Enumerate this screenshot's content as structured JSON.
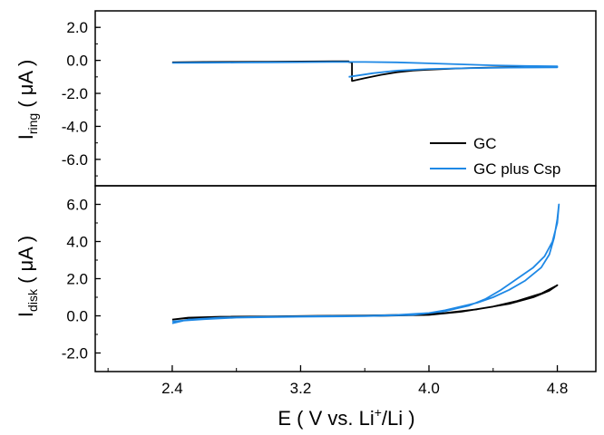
{
  "chart_data": {
    "type": "line",
    "xlabel": {
      "main": "E ( V vs. Li",
      "sup": "+",
      "tail": "/Li )"
    },
    "x_ticks": [
      "2.4",
      "3.2",
      "4.0",
      "4.8"
    ],
    "x_tick_values": [
      2.4,
      3.2,
      4.0,
      4.8
    ],
    "xlim": [
      1.92,
      5.04
    ],
    "legend": {
      "placement": "inside, lower-right of top panel",
      "entries": [
        {
          "name": "GC",
          "color": "#000000"
        },
        {
          "name": "GC plus Csp",
          "color": "#1e88e5"
        }
      ]
    },
    "panels": [
      {
        "id": "ring",
        "ylabel": {
          "main": "I",
          "sub": "ring",
          "tail": " ( μA )"
        },
        "ylim": [
          -7.6,
          3.0
        ],
        "y_ticks": [
          "2.0",
          "0.0",
          "-2.0",
          "-4.0",
          "-6.0"
        ],
        "y_tick_values": [
          2.0,
          0.0,
          -2.0,
          -4.0,
          -6.0
        ],
        "series": [
          {
            "name": "GC",
            "color": "#000000",
            "points": [
              [
                2.4,
                -0.12
              ],
              [
                2.6,
                -0.1
              ],
              [
                2.8,
                -0.09
              ],
              [
                3.0,
                -0.08
              ],
              [
                3.2,
                -0.07
              ],
              [
                3.4,
                -0.06
              ],
              [
                3.5,
                -0.06
              ],
              [
                3.5,
                -0.1
              ],
              [
                3.52,
                -0.13
              ],
              [
                3.52,
                -1.25
              ],
              [
                3.6,
                -1.08
              ],
              [
                3.7,
                -0.88
              ],
              [
                3.8,
                -0.72
              ],
              [
                3.9,
                -0.62
              ],
              [
                4.0,
                -0.56
              ],
              [
                4.2,
                -0.48
              ],
              [
                4.4,
                -0.43
              ],
              [
                4.6,
                -0.4
              ],
              [
                4.8,
                -0.38
              ]
            ]
          },
          {
            "name": "GC plus Csp",
            "color": "#1e88e5",
            "points": [
              [
                2.4,
                -0.15
              ],
              [
                2.6,
                -0.14
              ],
              [
                2.8,
                -0.13
              ],
              [
                3.0,
                -0.12
              ],
              [
                3.2,
                -0.11
              ],
              [
                3.4,
                -0.1
              ],
              [
                3.6,
                -0.1
              ],
              [
                3.8,
                -0.12
              ],
              [
                4.0,
                -0.18
              ],
              [
                4.2,
                -0.24
              ],
              [
                4.4,
                -0.3
              ],
              [
                4.6,
                -0.34
              ],
              [
                4.8,
                -0.36
              ],
              [
                4.8,
                -0.42
              ],
              [
                4.5,
                -0.44
              ],
              [
                4.2,
                -0.48
              ],
              [
                4.0,
                -0.52
              ],
              [
                3.8,
                -0.62
              ],
              [
                3.65,
                -0.78
              ],
              [
                3.5,
                -1.0
              ]
            ]
          }
        ]
      },
      {
        "id": "disk",
        "ylabel": {
          "main": "I",
          "sub": "disk",
          "tail": " ( μA )"
        },
        "ylim": [
          -3.0,
          7.0
        ],
        "y_ticks": [
          "6.0",
          "4.0",
          "2.0",
          "0.0",
          "-2.0"
        ],
        "y_tick_values": [
          6.0,
          4.0,
          2.0,
          0.0,
          -2.0
        ],
        "series": [
          {
            "name": "GC",
            "color": "#000000",
            "points": [
              [
                2.4,
                -0.2
              ],
              [
                2.5,
                -0.1
              ],
              [
                2.7,
                -0.05
              ],
              [
                3.0,
                -0.03
              ],
              [
                3.3,
                0.0
              ],
              [
                3.6,
                0.02
              ],
              [
                3.9,
                0.06
              ],
              [
                4.1,
                0.15
              ],
              [
                4.3,
                0.35
              ],
              [
                4.5,
                0.65
              ],
              [
                4.65,
                1.0
              ],
              [
                4.75,
                1.35
              ],
              [
                4.8,
                1.65
              ],
              [
                4.79,
                1.6
              ],
              [
                4.7,
                1.2
              ],
              [
                4.55,
                0.8
              ],
              [
                4.4,
                0.5
              ],
              [
                4.2,
                0.22
              ],
              [
                4.0,
                0.05
              ],
              [
                3.7,
                0.0
              ],
              [
                3.4,
                -0.01
              ],
              [
                3.0,
                -0.03
              ],
              [
                2.7,
                -0.07
              ],
              [
                2.5,
                -0.12
              ],
              [
                2.4,
                -0.2
              ]
            ]
          },
          {
            "name": "GC plus Csp",
            "color": "#1e88e5",
            "points": [
              [
                2.4,
                -0.4
              ],
              [
                2.5,
                -0.2
              ],
              [
                2.7,
                -0.1
              ],
              [
                3.0,
                -0.05
              ],
              [
                3.3,
                -0.02
              ],
              [
                3.6,
                0.0
              ],
              [
                3.8,
                0.05
              ],
              [
                4.0,
                0.15
              ],
              [
                4.1,
                0.3
              ],
              [
                4.2,
                0.5
              ],
              [
                4.3,
                0.7
              ],
              [
                4.4,
                1.0
              ],
              [
                4.5,
                1.4
              ],
              [
                4.6,
                1.9
              ],
              [
                4.7,
                2.6
              ],
              [
                4.75,
                3.3
              ],
              [
                4.78,
                4.2
              ],
              [
                4.8,
                5.2
              ],
              [
                4.81,
                6.0
              ],
              [
                4.8,
                5.0
              ],
              [
                4.77,
                4.0
              ],
              [
                4.72,
                3.2
              ],
              [
                4.65,
                2.6
              ],
              [
                4.55,
                2.0
              ],
              [
                4.45,
                1.4
              ],
              [
                4.35,
                0.9
              ],
              [
                4.25,
                0.55
              ],
              [
                4.1,
                0.25
              ],
              [
                3.9,
                0.05
              ],
              [
                3.6,
                -0.02
              ],
              [
                3.2,
                -0.05
              ],
              [
                2.8,
                -0.1
              ],
              [
                2.6,
                -0.18
              ],
              [
                2.4,
                -0.3
              ]
            ]
          }
        ]
      }
    ]
  }
}
